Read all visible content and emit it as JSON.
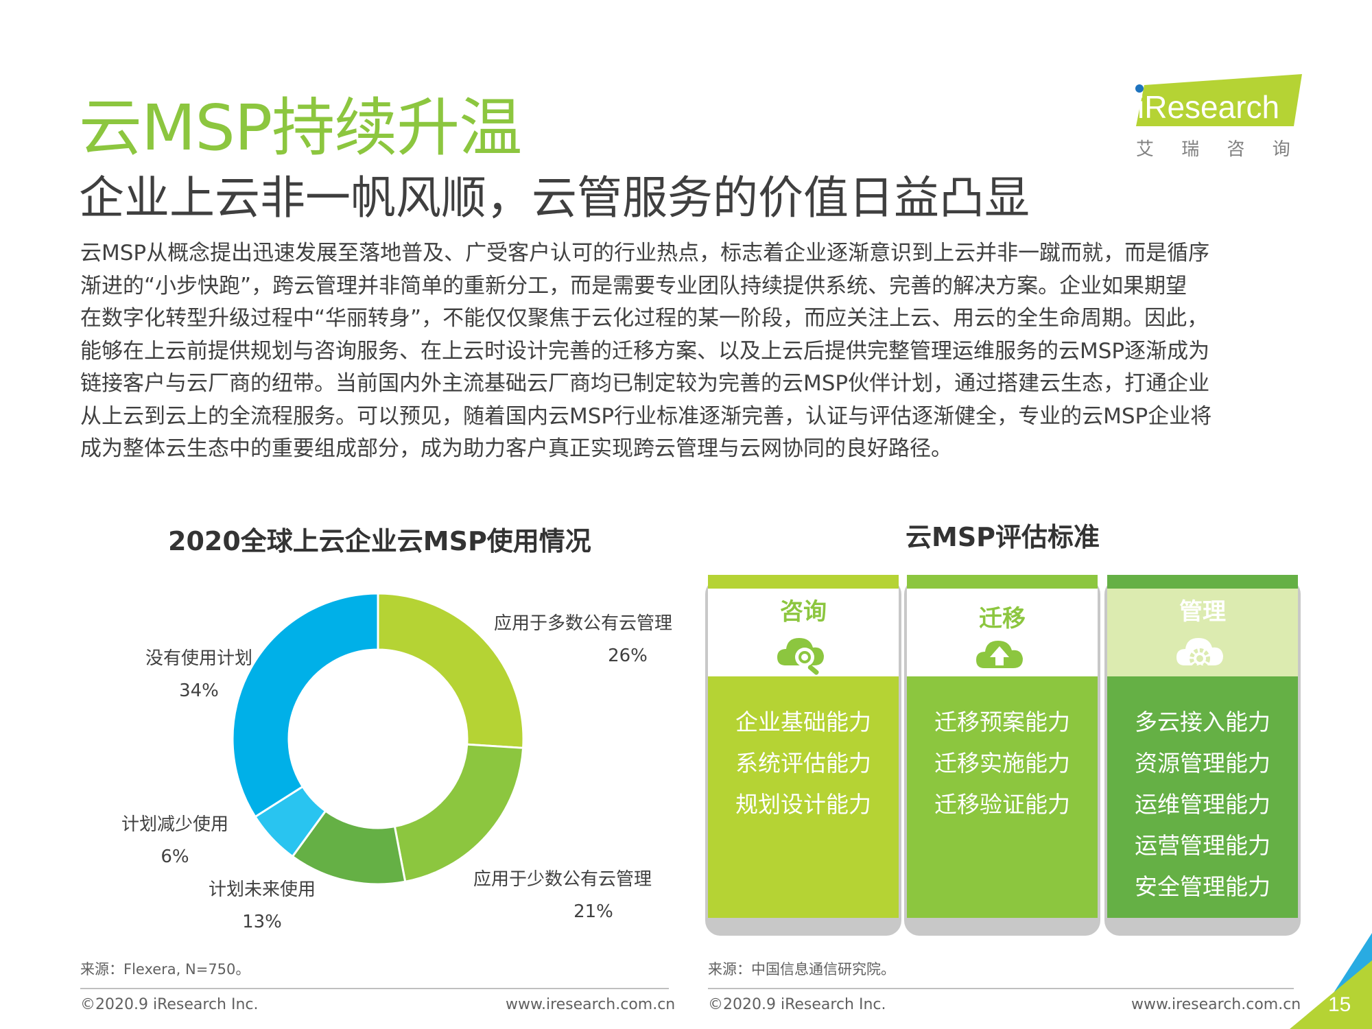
{
  "title": "云MSP持续升温",
  "subtitle": "企业上云非一帆风顺，云管服务的价值日益凸显",
  "logo": {
    "brand": "iResearch",
    "cn": "艾 瑞 咨 询"
  },
  "body_lines": [
    "云MSP从概念提出迅速发展至落地普及、广受客户认可的行业热点，标志着企业逐渐意识到上云并非一蹴而就，而是循序",
    "渐进的“小步快跑”，跨云管理并非简单的重新分工，而是需要专业团队持续提供系统、完善的解决方案。企业如果期望",
    "在数字化转型升级过程中“华丽转身”，不能仅仅聚焦于云化过程的某一阶段，而应关注上云、用云的全生命周期。因此，",
    "能够在上云前提供规划与咨询服务、在上云时设计完善的迁移方案、以及上云后提供完整管理运维服务的云MSP逐渐成为",
    "链接客户与云厂商的纽带。当前国内外主流基础云厂商均已制定较为完善的云MSP伙伴计划，通过搭建云生态，打通企业",
    "从上云到云上的全流程服务。可以预见，随着国内云MSP行业标准逐渐完善，认证与评估逐渐健全，专业的云MSP企业将",
    "成为整体云生态中的重要组成部分，成为助力客户真正实现跨云管理与云网协同的良好路径。"
  ],
  "chart_data": {
    "type": "pie",
    "title": "2020全球上云企业云MSP使用情况",
    "categories": [
      "应用于多数公有云管理",
      "应用于少数公有云管理",
      "计划未来使用",
      "计划减少使用",
      "没有使用计划"
    ],
    "values": [
      26,
      21,
      13,
      6,
      34
    ],
    "value_labels": [
      "26%",
      "21%",
      "13%",
      "6%",
      "34%"
    ],
    "colors": [
      "#b5d334",
      "#8cc63f",
      "#65b045",
      "#29c4f0",
      "#00b0e8"
    ],
    "donut": true
  },
  "left_source": "来源：Flexera, N=750。",
  "right_chart_title": "云MSP评估标准",
  "criteria": [
    {
      "header": "咨询",
      "icon": "cloud-search-icon",
      "items": [
        "企业基础能力",
        "系统评估能力",
        "规划设计能力"
      ],
      "header_color": "#8cc63f",
      "body_color": "#b5d334"
    },
    {
      "header": "迁移",
      "icon": "cloud-upload-icon",
      "items": [
        "迁移预案能力",
        "迁移实施能力",
        "迁移验证能力"
      ],
      "header_color": "#8cc63f",
      "body_color": "#8cc63f"
    },
    {
      "header": "管理",
      "icon": "cloud-gear-icon",
      "items": [
        "多云接入能力",
        "资源管理能力",
        "运维管理能力",
        "运营管理能力",
        "安全管理能力"
      ],
      "header_color": "#ffffff",
      "body_color": "#65b045"
    }
  ],
  "right_source": "来源：中国信息通信研究院。",
  "footer": {
    "copyright": "©2020.9 iResearch Inc.",
    "url": "www.iresearch.com.cn",
    "page": "15"
  }
}
